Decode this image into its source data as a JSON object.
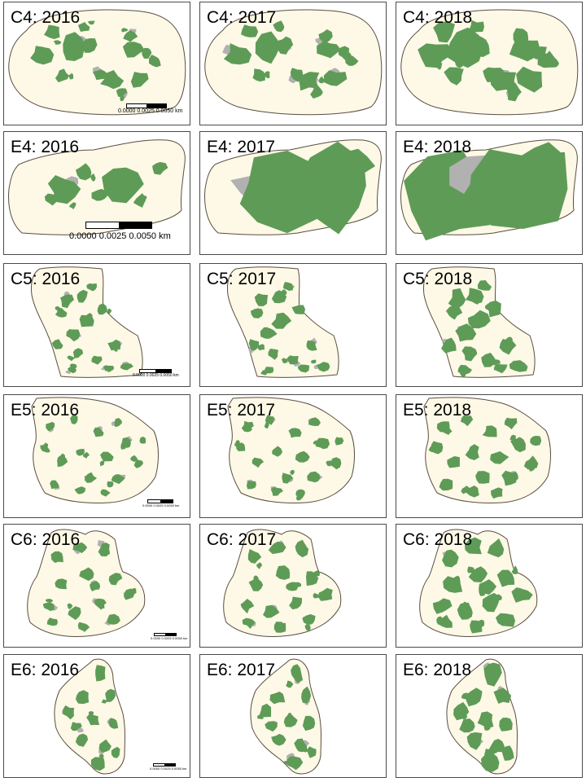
{
  "colors": {
    "boundary_fill": "#fdf9e6",
    "boundary_stroke": "#5a4d42",
    "canopy_green": "#5e9b57",
    "canopy_gray": "#b1b1b1",
    "panel_border": "#4a4a4a"
  },
  "scalebar_text": "0.0000 0.0025 0.0050 km",
  "panels": [
    {
      "label": "C4: 2016",
      "site": "C4",
      "year": 2016
    },
    {
      "label": "C4: 2017",
      "site": "C4",
      "year": 2017
    },
    {
      "label": "C4: 2018",
      "site": "C4",
      "year": 2018
    },
    {
      "label": "E4: 2016",
      "site": "E4",
      "year": 2016
    },
    {
      "label": "E4: 2017",
      "site": "E4",
      "year": 2017
    },
    {
      "label": "E4: 2018",
      "site": "E4",
      "year": 2018
    },
    {
      "label": "C5: 2016",
      "site": "C5",
      "year": 2016
    },
    {
      "label": "C5: 2017",
      "site": "C5",
      "year": 2017
    },
    {
      "label": "C5: 2018",
      "site": "C5",
      "year": 2018
    },
    {
      "label": "E5: 2016",
      "site": "E5",
      "year": 2016
    },
    {
      "label": "E5: 2017",
      "site": "E5",
      "year": 2017
    },
    {
      "label": "E5: 2018",
      "site": "E5",
      "year": 2018
    },
    {
      "label": "C6: 2016",
      "site": "C6",
      "year": 2016
    },
    {
      "label": "C6: 2017",
      "site": "C6",
      "year": 2017
    },
    {
      "label": "C6: 2018",
      "site": "C6",
      "year": 2018
    },
    {
      "label": "E6: 2016",
      "site": "E6",
      "year": 2016
    },
    {
      "label": "E6: 2017",
      "site": "E6",
      "year": 2017
    },
    {
      "label": "E6: 2018",
      "site": "E6",
      "year": 2018
    }
  ]
}
